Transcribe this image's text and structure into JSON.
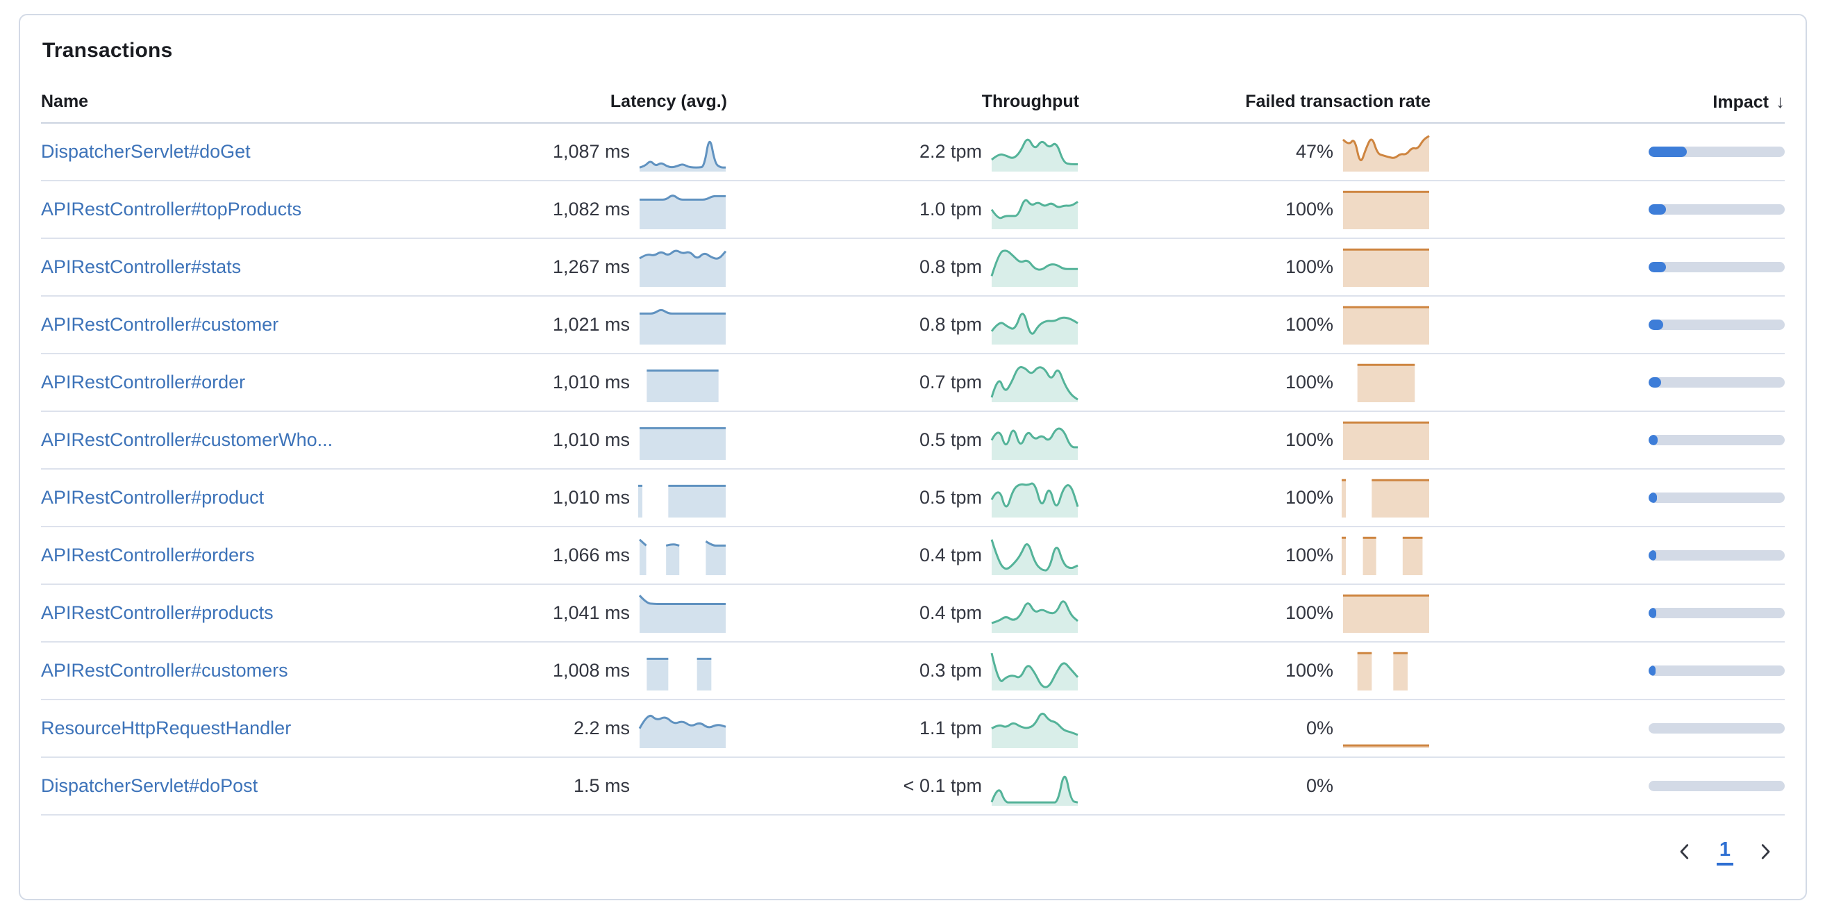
{
  "panel": {
    "title": "Transactions"
  },
  "colors": {
    "link": "#3d73b9",
    "latency_line": "#6092C0",
    "throughput_line": "#54B399",
    "failed_line": "#CE8540",
    "impact_fill": "#3d7dd8",
    "impact_track": "#d3dae6"
  },
  "table": {
    "columns": [
      {
        "label": "Name"
      },
      {
        "label": "Latency (avg.)"
      },
      {
        "label": "Throughput"
      },
      {
        "label": "Failed transaction rate"
      },
      {
        "label": "Impact",
        "sort": "desc",
        "sort_icon": "↓"
      }
    ],
    "rows": [
      {
        "name": "DispatcherServlet#doGet",
        "latency": "1,087 ms",
        "latency_spark": [
          0.06,
          0.1,
          0.26,
          0.1,
          0.2,
          0.1,
          0.06,
          0.1,
          0.16,
          0.08,
          0.06,
          0.06,
          0.08,
          1.0,
          0.18,
          0.06,
          0.06
        ],
        "throughput": "2.2 tpm",
        "throughput_spark": [
          0.28,
          0.45,
          0.4,
          0.3,
          0.5,
          0.95,
          0.55,
          0.85,
          0.6,
          0.8,
          0.2,
          0.15,
          0.15
        ],
        "failed": "47%",
        "failed_spark": [
          0.85,
          0.68,
          0.9,
          0.12,
          0.6,
          0.95,
          0.45,
          0.4,
          0.35,
          0.32,
          0.45,
          0.42,
          0.62,
          0.58,
          0.85,
          0.95
        ],
        "impact_pct": 28
      },
      {
        "name": "APIRestController#topProducts",
        "latency": "1,082 ms",
        "latency_spark": [
          0.78,
          0.78,
          0.78,
          0.78,
          0.78,
          0.93,
          0.78,
          0.78,
          0.78,
          0.78,
          0.78,
          0.88,
          0.88,
          0.88
        ],
        "throughput": "1.0 tpm",
        "throughput_spark": [
          0.5,
          0.22,
          0.32,
          0.32,
          0.32,
          0.85,
          0.6,
          0.72,
          0.58,
          0.7,
          0.55,
          0.62,
          0.6,
          0.72
        ],
        "failed": "100%",
        "failed_spark": [
          1,
          1,
          1,
          1,
          1,
          1,
          1,
          1,
          1,
          1,
          1,
          1,
          1
        ],
        "impact_pct": 13
      },
      {
        "name": "APIRestController#stats",
        "latency": "1,267 ms",
        "latency_spark": [
          0.75,
          0.88,
          0.82,
          0.95,
          0.82,
          1.0,
          0.88,
          0.95,
          0.72,
          0.92,
          0.78,
          0.72,
          0.95
        ],
        "throughput": "0.8 tpm",
        "throughput_spark": [
          0.25,
          0.9,
          1.0,
          0.82,
          0.62,
          0.72,
          0.45,
          0.42,
          0.58,
          0.58,
          0.45,
          0.45,
          0.45
        ],
        "failed": "100%",
        "failed_spark": [
          1,
          1,
          1,
          1,
          1,
          1,
          1,
          1,
          1,
          1,
          1,
          1,
          1
        ],
        "impact_pct": 12.5
      },
      {
        "name": "APIRestController#customer",
        "latency": "1,021 ms",
        "latency_spark": [
          0.82,
          0.82,
          0.82,
          0.95,
          0.82,
          0.82,
          0.82,
          0.82,
          0.82,
          0.82,
          0.82,
          0.82,
          0.82
        ],
        "throughput": "0.8 tpm",
        "throughput_spark": [
          0.32,
          0.62,
          0.45,
          0.35,
          1.0,
          0.12,
          0.5,
          0.62,
          0.6,
          0.72,
          0.68,
          0.55
        ],
        "failed": "100%",
        "failed_spark": [
          1,
          1,
          1,
          1,
          1,
          1,
          1,
          1,
          1,
          1,
          1,
          1,
          1
        ],
        "impact_pct": 10.5
      },
      {
        "name": "APIRestController#order",
        "latency": "1,010 ms",
        "latency_spark": [
          null,
          0.84,
          0.84,
          0.84,
          0.84,
          0.84,
          0.84,
          0.84,
          0.84,
          0.84,
          0.84,
          0.84,
          null
        ],
        "throughput": "0.7 tpm",
        "throughput_spark": [
          0.08,
          0.72,
          0.2,
          0.5,
          0.95,
          0.92,
          0.72,
          0.95,
          0.9,
          0.55,
          0.95,
          0.45,
          0.15,
          0.02
        ],
        "failed": "100%",
        "failed_spark": [
          null,
          null,
          1,
          1,
          1,
          1,
          1,
          1,
          1,
          1,
          1,
          null,
          null
        ],
        "impact_pct": 9
      },
      {
        "name": "APIRestController#customerWho...",
        "latency": "1,010 ms",
        "latency_spark": [
          0.84,
          0.84,
          0.84,
          0.84,
          0.84,
          0.84,
          0.84,
          0.84,
          0.84,
          0.84,
          0.84,
          0.84,
          0.84
        ],
        "throughput": "0.5 tpm",
        "throughput_spark": [
          0.5,
          0.9,
          0.2,
          0.95,
          0.25,
          0.8,
          0.5,
          0.65,
          0.45,
          0.85,
          0.8,
          0.3,
          0.3
        ],
        "failed": "100%",
        "failed_spark": [
          1,
          1,
          1,
          1,
          1,
          1,
          1,
          1,
          1,
          1,
          1,
          1,
          1
        ],
        "impact_pct": 6.5
      },
      {
        "name": "APIRestController#product",
        "latency": "1,010 ms",
        "latency_spark": [
          0.84,
          null,
          null,
          null,
          0.84,
          0.84,
          0.84,
          0.84,
          0.84,
          0.84,
          0.84,
          0.84,
          0.84
        ],
        "throughput": "0.5 tpm",
        "throughput_spark": [
          0.45,
          0.85,
          0.08,
          0.75,
          0.9,
          0.85,
          0.95,
          0.15,
          0.9,
          0.1,
          0.8,
          0.9,
          0.25
        ],
        "failed": "100%",
        "failed_spark": [
          1,
          null,
          null,
          null,
          1,
          1,
          1,
          1,
          1,
          1,
          1,
          1,
          1
        ],
        "impact_pct": 6.3
      },
      {
        "name": "APIRestController#orders",
        "latency": "1,066 ms",
        "latency_spark": [
          0.95,
          0.78,
          null,
          null,
          0.78,
          0.83,
          0.78,
          null,
          null,
          null,
          0.9,
          0.78,
          0.78,
          0.78
        ],
        "throughput": "0.4 tpm",
        "throughput_spark": [
          0.95,
          0.3,
          0.08,
          0.25,
          0.5,
          0.95,
          0.3,
          0.08,
          0.08,
          0.9,
          0.25,
          0.12,
          0.22
        ],
        "failed": "100%",
        "failed_spark": [
          1,
          null,
          null,
          1,
          1,
          1,
          null,
          null,
          null,
          1,
          1,
          1,
          1,
          null
        ],
        "impact_pct": 5.5
      },
      {
        "name": "APIRestController#products",
        "latency": "1,041 ms",
        "latency_spark": [
          1.0,
          0.78,
          0.76,
          0.76,
          0.76,
          0.76,
          0.76,
          0.76,
          0.76,
          0.76,
          0.76,
          0.76,
          0.76
        ],
        "throughput": "0.4 tpm",
        "throughput_spark": [
          0.22,
          0.28,
          0.42,
          0.28,
          0.42,
          0.88,
          0.5,
          0.62,
          0.5,
          0.5,
          0.95,
          0.45,
          0.28
        ],
        "failed": "100%",
        "failed_spark": [
          1,
          1,
          1,
          1,
          1,
          1,
          1,
          1,
          1,
          1,
          1,
          1,
          1
        ],
        "impact_pct": 5.4
      },
      {
        "name": "APIRestController#customers",
        "latency": "1,008 ms",
        "latency_spark": [
          null,
          0.84,
          0.84,
          0.84,
          0.84,
          null,
          null,
          null,
          0.84,
          0.84,
          0.84,
          null,
          null
        ],
        "throughput": "0.3 tpm",
        "throughput_spark": [
          1.0,
          0.12,
          0.32,
          0.38,
          0.28,
          0.72,
          0.45,
          0.04,
          0.04,
          0.45,
          0.78,
          0.55,
          0.32
        ],
        "failed": "100%",
        "failed_spark": [
          null,
          null,
          1,
          1,
          1,
          null,
          null,
          1,
          1,
          1,
          null,
          null,
          null
        ],
        "impact_pct": 5
      },
      {
        "name": "ResourceHttpRequestHandler",
        "latency": "2.2 ms",
        "latency_spark": [
          0.5,
          0.95,
          0.72,
          0.85,
          0.62,
          0.72,
          0.55,
          0.68,
          0.5,
          0.62,
          0.55
        ],
        "throughput": "1.1 tpm",
        "throughput_spark": [
          0.5,
          0.62,
          0.52,
          0.68,
          0.55,
          0.5,
          0.6,
          1.0,
          0.72,
          0.68,
          0.45,
          0.4,
          0.32
        ],
        "failed": "0%",
        "failed_spark": [
          0.02,
          0.02,
          0.02,
          0.02,
          0.02,
          0.02,
          0.02,
          0.02,
          0.02,
          0.02,
          0.02,
          0.02,
          0.02
        ],
        "impact_pct": 0
      },
      {
        "name": "DispatcherServlet#doPost",
        "latency": "1.5 ms",
        "latency_spark": null,
        "throughput": "< 0.1 tpm",
        "throughput_spark": [
          0.05,
          0.55,
          0.04,
          0.04,
          0.04,
          0.04,
          0.04,
          0.04,
          0.04,
          0.04,
          0.04,
          1.0,
          0.08,
          0.04
        ],
        "failed": "0%",
        "failed_spark": null,
        "impact_pct": 0
      }
    ]
  },
  "pagination": {
    "current": "1"
  }
}
